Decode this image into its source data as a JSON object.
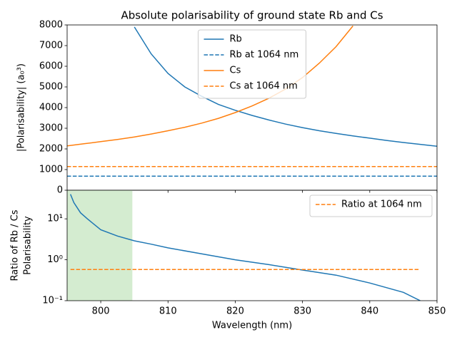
{
  "chart_data": [
    {
      "type": "line",
      "title": "Absolute polarisability of ground state Rb and Cs",
      "ylabel": "|Polarisability| (a₀³)",
      "x": [
        795,
        797.5,
        800,
        802.5,
        805,
        807.5,
        810,
        812.5,
        815,
        817.5,
        820,
        822.5,
        825,
        827.5,
        830,
        832.5,
        835,
        837.5,
        840,
        842.5,
        845,
        847.5,
        850
      ],
      "series": [
        {
          "name": "Rb",
          "color": "#1f77b4",
          "linestyle": "solid",
          "values": [
            null,
            null,
            null,
            null,
            7900,
            6600,
            5650,
            5000,
            4550,
            4150,
            3870,
            3620,
            3400,
            3200,
            3030,
            2880,
            2750,
            2630,
            2520,
            2410,
            2310,
            2220,
            2130
          ]
        },
        {
          "name": "Rb at 1064 nm",
          "color": "#1f77b4",
          "linestyle": "dashed",
          "values": [
            680,
            680,
            680,
            680,
            680,
            680,
            680,
            680,
            680,
            680,
            680,
            680,
            680,
            680,
            680,
            680,
            680,
            680,
            680,
            680,
            680,
            680,
            680
          ]
        },
        {
          "name": "Cs",
          "color": "#ff7f0e",
          "linestyle": "solid",
          "values": [
            2150,
            2250,
            2350,
            2460,
            2580,
            2720,
            2880,
            3050,
            3250,
            3480,
            3760,
            4080,
            4450,
            4900,
            5450,
            6150,
            6950,
            7950,
            null,
            null,
            null,
            null,
            null
          ]
        },
        {
          "name": "Cs at 1064 nm",
          "color": "#ff7f0e",
          "linestyle": "dashed",
          "values": [
            1150,
            1150,
            1150,
            1150,
            1150,
            1150,
            1150,
            1150,
            1150,
            1150,
            1150,
            1150,
            1150,
            1150,
            1150,
            1150,
            1150,
            1150,
            1150,
            1150,
            1150,
            1150,
            1150
          ]
        }
      ],
      "xlim": [
        795,
        850
      ],
      "xticks": [
        800,
        810,
        820,
        830,
        840,
        850
      ],
      "ylim": [
        0,
        8000
      ],
      "yticks": [
        0,
        1000,
        2000,
        3000,
        4000,
        5000,
        6000,
        7000,
        8000
      ],
      "grid": false,
      "legend": "upper center"
    },
    {
      "type": "line",
      "xlabel": "Wavelength (nm)",
      "ylabel": [
        "Ratio of Rb / Cs",
        "Polarisability"
      ],
      "x": [
        795.5,
        796,
        797,
        798,
        800,
        802.5,
        805,
        807.5,
        810,
        815,
        820,
        825,
        830,
        835,
        840,
        845,
        847.5
      ],
      "series": [
        {
          "color": "#1f77b4",
          "linestyle": "solid",
          "values": [
            40,
            25,
            14,
            10,
            5.4,
            3.8,
            2.9,
            2.4,
            1.95,
            1.4,
            1.0,
            0.76,
            0.56,
            0.42,
            0.27,
            0.16,
            0.1
          ]
        },
        {
          "name": "Ratio at 1064 nm",
          "color": "#ff7f0e",
          "linestyle": "dashed",
          "values": [
            0.58,
            0.58,
            0.58,
            0.58,
            0.58,
            0.58,
            0.58,
            0.58,
            0.58,
            0.58,
            0.58,
            0.58,
            0.58,
            0.58,
            0.58,
            0.58,
            0.58
          ]
        }
      ],
      "span": [
        795,
        804.7
      ],
      "span_color": "#d4ecd0",
      "xlim": [
        795,
        850
      ],
      "xticks": [
        800,
        810,
        820,
        830,
        840,
        850
      ],
      "ylim": [
        0.1,
        50
      ],
      "log_y": true,
      "yticks": [
        {
          "value": 0.1,
          "label": "10⁻¹"
        },
        {
          "value": 1,
          "label": "10⁰"
        },
        {
          "value": 10,
          "label": "10¹"
        }
      ],
      "grid": false,
      "legend": "upper right"
    }
  ]
}
